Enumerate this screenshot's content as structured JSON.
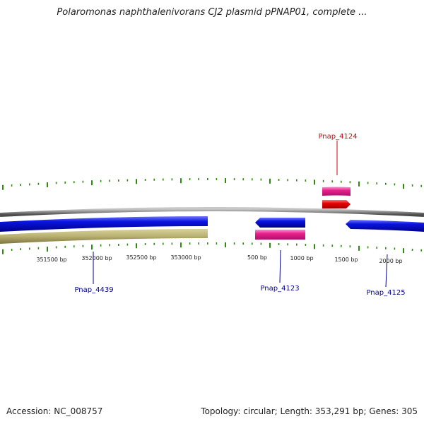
{
  "title": "Polaromonas naphthalenivorans CJ2 plasmid pPNAP01, complete ...",
  "footer": {
    "accession": "Accession: NC_008757",
    "summary": "Topology: circular; Length: 353,291 bp; Genes: 305"
  },
  "colors": {
    "tick": "#2e8b10",
    "backbone": "#8a8a8a",
    "forward_gene": "#0a14e0",
    "reverse_gene": "#0a14e0",
    "band": "#b8b070",
    "pink_feature": "#e8208c",
    "red_feature": "#e80000",
    "label_blue": "#00008b",
    "label_red": "#d40000"
  },
  "ticks": {
    "labels": [
      "351500 bp",
      "352000 bp",
      "352500 bp",
      "353000 bp",
      "500 bp",
      "1000 bp",
      "1500 bp",
      "2000 bp"
    ]
  },
  "genes": [
    {
      "name": "Pnap_4439",
      "color": "blue"
    },
    {
      "name": "Pnap_4123",
      "color": "blue"
    },
    {
      "name": "Pnap_4125",
      "color": "blue"
    },
    {
      "name": "Pnap_4124",
      "color": "red"
    }
  ]
}
